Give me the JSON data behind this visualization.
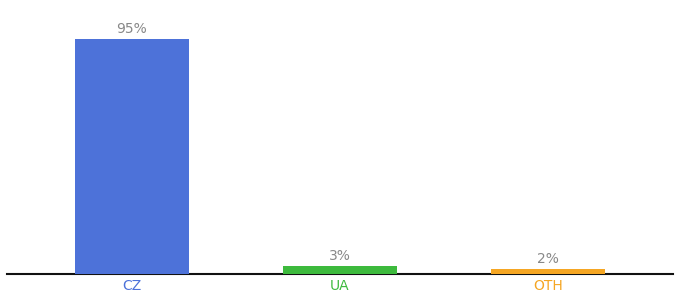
{
  "categories": [
    "CZ",
    "UA",
    "OTH"
  ],
  "values": [
    95,
    3,
    2
  ],
  "bar_colors": [
    "#4d72d9",
    "#3dba3d",
    "#f5a623"
  ],
  "labels": [
    "95%",
    "3%",
    "2%"
  ],
  "label_color": "#888888",
  "tick_colors": [
    "#4d72d9",
    "#3dba3d",
    "#f5a623"
  ],
  "background_color": "#ffffff",
  "label_fontsize": 10,
  "tick_fontsize": 10,
  "ylim": [
    0,
    108
  ],
  "bar_width": 0.55,
  "x_positions": [
    0,
    1,
    2
  ]
}
